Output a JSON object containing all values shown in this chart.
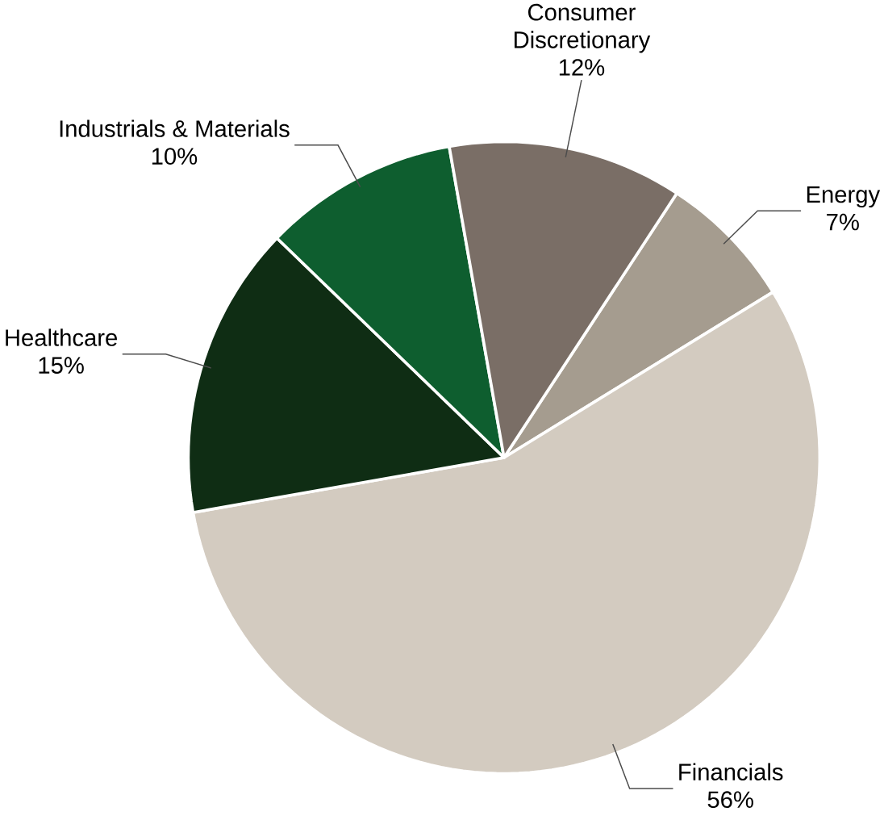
{
  "chart_data": {
    "type": "pie",
    "categories": [
      "Energy",
      "Financials",
      "Healthcare",
      "Industrials & Materials",
      "Consumer Discretionary"
    ],
    "values": [
      7,
      56,
      15,
      10,
      12
    ],
    "value_labels": [
      "7%",
      "56%",
      "15%",
      "10%",
      "12%"
    ],
    "colors": [
      "#a59c8f",
      "#d3cbc0",
      "#0f2d14",
      "#0e5e2f",
      "#7a6e66"
    ]
  }
}
